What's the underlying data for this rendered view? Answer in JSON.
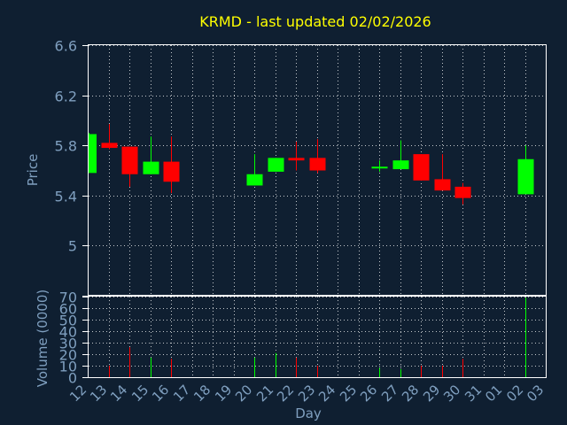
{
  "chart_data": [
    {
      "type": "candlestick",
      "title": "KRMD - last updated 02/02/2026",
      "ylabel": "Price",
      "ylim": [
        4.6,
        6.6
      ],
      "yticks": [
        "6.6",
        "6.2",
        "5.8",
        "5.4",
        "5",
        ""
      ],
      "ytick_values": [
        6.6,
        6.2,
        5.8,
        5.4,
        5.0,
        4.6
      ],
      "grid": true,
      "candles": [
        {
          "day": "12",
          "open": 5.58,
          "high": 5.9,
          "low": 5.58,
          "close": 5.89,
          "color": "#00ff00"
        },
        {
          "day": "13",
          "open": 5.82,
          "high": 5.97,
          "low": 5.77,
          "close": 5.78,
          "color": "#ff0000"
        },
        {
          "day": "14",
          "open": 5.79,
          "high": 5.79,
          "low": 5.47,
          "close": 5.57,
          "color": "#ff0000"
        },
        {
          "day": "15",
          "open": 5.57,
          "high": 5.87,
          "low": 5.57,
          "close": 5.67,
          "color": "#00ff00"
        },
        {
          "day": "16",
          "open": 5.67,
          "high": 5.87,
          "low": 5.42,
          "close": 5.51,
          "color": "#ff0000"
        },
        {
          "day": "20",
          "open": 5.48,
          "high": 5.73,
          "low": 5.48,
          "close": 5.57,
          "color": "#00ff00"
        },
        {
          "day": "21",
          "open": 5.59,
          "high": 5.7,
          "low": 5.59,
          "close": 5.7,
          "color": "#00ff00"
        },
        {
          "day": "22",
          "open": 5.7,
          "high": 5.83,
          "low": 5.6,
          "close": 5.68,
          "color": "#ff0000"
        },
        {
          "day": "23",
          "open": 5.7,
          "high": 5.85,
          "low": 5.58,
          "close": 5.6,
          "color": "#ff0000"
        },
        {
          "day": "26",
          "open": 5.62,
          "high": 5.68,
          "low": 5.59,
          "close": 5.63,
          "color": "#00ff00"
        },
        {
          "day": "27",
          "open": 5.61,
          "high": 5.84,
          "low": 5.61,
          "close": 5.68,
          "color": "#00ff00"
        },
        {
          "day": "28",
          "open": 5.73,
          "high": 5.73,
          "low": 5.52,
          "close": 5.52,
          "color": "#ff0000"
        },
        {
          "day": "29",
          "open": 5.53,
          "high": 5.73,
          "low": 5.44,
          "close": 5.44,
          "color": "#ff0000"
        },
        {
          "day": "30",
          "open": 5.47,
          "high": 5.5,
          "low": 5.33,
          "close": 5.38,
          "color": "#ff0000"
        },
        {
          "day": "02",
          "open": 5.41,
          "high": 5.8,
          "low": 5.41,
          "close": 5.69,
          "color": "#00ff00"
        }
      ]
    },
    {
      "type": "bar",
      "ylabel": "Volume (0000)",
      "xlabel": "Day",
      "ylim": [
        0,
        70
      ],
      "yticks": [
        "70",
        "60",
        "50",
        "40",
        "30",
        "20",
        "10",
        "0"
      ],
      "ytick_values": [
        70,
        60,
        50,
        40,
        30,
        20,
        10,
        0
      ],
      "categories": [
        "12",
        "13",
        "14",
        "15",
        "16",
        "17",
        "18",
        "19",
        "20",
        "21",
        "22",
        "23",
        "24",
        "25",
        "26",
        "27",
        "28",
        "29",
        "30",
        "31",
        "01",
        "02",
        "03"
      ],
      "bars": [
        {
          "day": "13",
          "value": 10,
          "color": "#ff0000"
        },
        {
          "day": "14",
          "value": 26,
          "color": "#ff0000"
        },
        {
          "day": "15",
          "value": 17,
          "color": "#00ff00"
        },
        {
          "day": "16",
          "value": 16,
          "color": "#ff0000"
        },
        {
          "day": "20",
          "value": 17,
          "color": "#00ff00"
        },
        {
          "day": "21",
          "value": 21,
          "color": "#00ff00"
        },
        {
          "day": "22",
          "value": 17,
          "color": "#ff0000"
        },
        {
          "day": "23",
          "value": 10,
          "color": "#ff0000"
        },
        {
          "day": "26",
          "value": 8,
          "color": "#00ff00"
        },
        {
          "day": "27",
          "value": 7,
          "color": "#00ff00"
        },
        {
          "day": "28",
          "value": 10,
          "color": "#ff0000"
        },
        {
          "day": "29",
          "value": 10,
          "color": "#ff0000"
        },
        {
          "day": "30",
          "value": 16,
          "color": "#ff0000"
        },
        {
          "day": "02",
          "value": 69,
          "color": "#00ff00"
        }
      ],
      "grid": true
    }
  ],
  "colors": {
    "background": "#0f1f31",
    "text": "#7f9fbf",
    "title": "#ffff00",
    "axis": "#ffffff",
    "up": "#00ff00",
    "down": "#ff0000"
  }
}
